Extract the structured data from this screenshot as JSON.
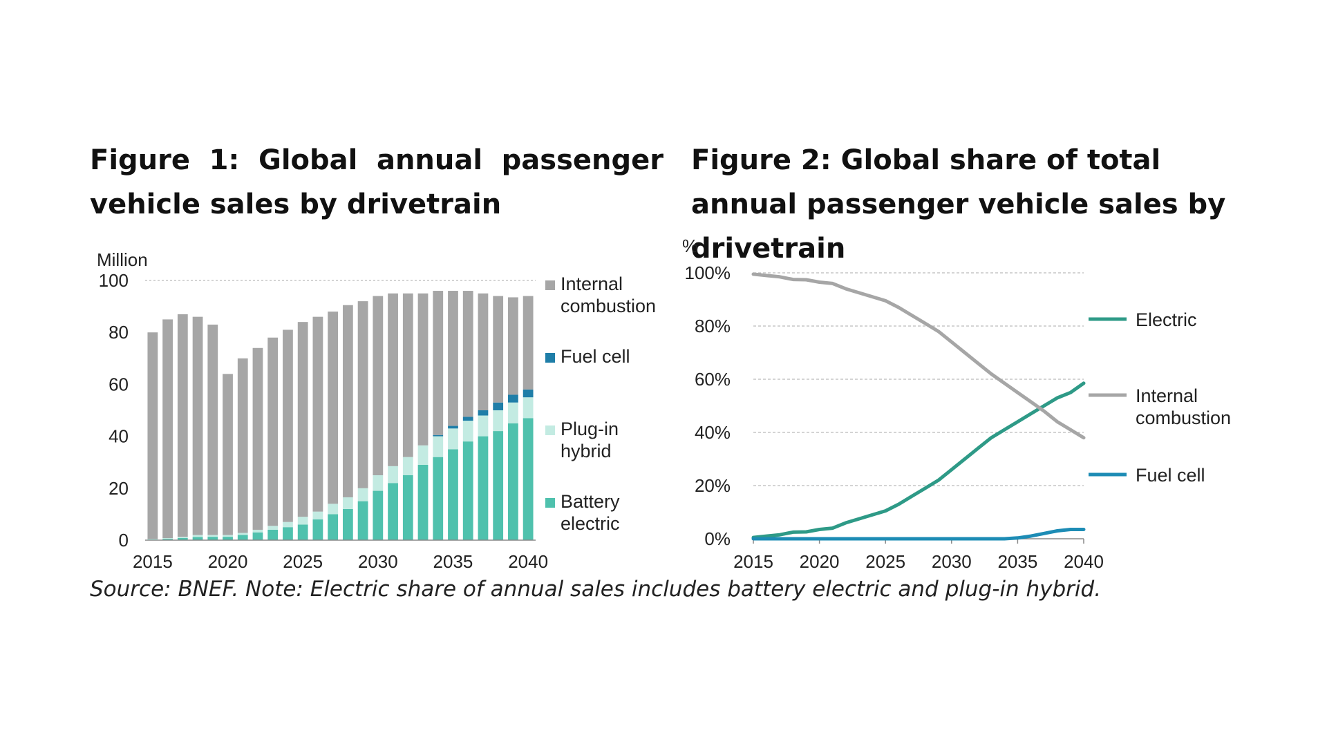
{
  "figure1": {
    "title": "Figure 1: Global annual passenger vehicle sales by drivetrain"
  },
  "figure2": {
    "title": "Figure 2: Global share of total annual passenger vehicle sales by drivetrain"
  },
  "source_note": "Source: BNEF. Note: Electric share of annual sales includes battery electric and plug-in hybrid.",
  "colors": {
    "internal_combustion": "#a6a6a6",
    "fuel_cell": "#1f7ea8",
    "plug_in_hybrid": "#c3ebe2",
    "battery_electric": "#4fc1ad",
    "electric_line": "#2e9a87",
    "ice_line": "#a6a6a6",
    "fuel_cell_line": "#1d8cb5",
    "grid": "#bbbbbb"
  },
  "chart_data": [
    {
      "type": "bar",
      "stacked": true,
      "title": "Figure 1: Global annual passenger vehicle sales by drivetrain",
      "ylabel": "Million",
      "xlabel": "",
      "ylim": [
        0,
        100
      ],
      "yticks": [
        "0",
        "20",
        "40",
        "60",
        "80",
        "100"
      ],
      "xticks": [
        "2015",
        "2020",
        "2025",
        "2030",
        "2035",
        "2040"
      ],
      "grid": true,
      "categories": [
        2015,
        2016,
        2017,
        2018,
        2019,
        2020,
        2021,
        2022,
        2023,
        2024,
        2025,
        2026,
        2027,
        2028,
        2029,
        2030,
        2031,
        2032,
        2033,
        2034,
        2035,
        2036,
        2037,
        2038,
        2039,
        2040
      ],
      "series": [
        {
          "name": "Battery electric",
          "key": "battery_electric",
          "values": [
            0.3,
            0.5,
            0.8,
            1.2,
            1.3,
            1.3,
            2,
            3,
            4,
            5,
            6,
            8,
            10,
            12,
            15,
            19,
            22,
            25,
            29,
            32,
            35,
            38,
            40,
            42,
            45,
            47
          ]
        },
        {
          "name": "Plug-in hybrid",
          "key": "plug_in_hybrid",
          "values": [
            0.2,
            0.3,
            0.5,
            0.8,
            0.7,
            0.7,
            0.8,
            1,
            1.5,
            2,
            3,
            3,
            4,
            4.5,
            5,
            6,
            6.5,
            7,
            7.5,
            8,
            8,
            8,
            8,
            8,
            8,
            8
          ]
        },
        {
          "name": "Fuel cell",
          "key": "fuel_cell",
          "values": [
            0,
            0,
            0,
            0,
            0,
            0,
            0,
            0,
            0,
            0,
            0,
            0,
            0,
            0,
            0,
            0,
            0,
            0,
            0,
            0.5,
            1,
            1.5,
            2,
            3,
            3,
            3
          ]
        },
        {
          "name": "Internal combustion",
          "key": "internal_combustion",
          "values": [
            79.5,
            84.2,
            85.7,
            84,
            81,
            62,
            67.2,
            70,
            72.5,
            74,
            75,
            75,
            74,
            74,
            72,
            69,
            66.5,
            63,
            58.5,
            55.5,
            52,
            48.5,
            45,
            41,
            37.5,
            36
          ]
        }
      ],
      "legend": [
        {
          "key": "internal_combustion",
          "lines": [
            "Internal",
            "combustion"
          ]
        },
        {
          "key": "fuel_cell",
          "lines": [
            "Fuel cell"
          ]
        },
        {
          "key": "plug_in_hybrid",
          "lines": [
            "Plug-in",
            "hybrid"
          ]
        },
        {
          "key": "battery_electric",
          "lines": [
            "Battery",
            "electric"
          ]
        }
      ],
      "legend_position": "right"
    },
    {
      "type": "line",
      "title": "Figure 2: Global share of total annual passenger vehicle sales by drivetrain",
      "ylabel": "%",
      "xlabel": "",
      "ylim": [
        0,
        100
      ],
      "xlim": [
        2015,
        2040
      ],
      "yticks": [
        "0%",
        "20%",
        "40%",
        "60%",
        "80%",
        "100%"
      ],
      "xticks": [
        "2015",
        "2020",
        "2025",
        "2030",
        "2035",
        "2040"
      ],
      "grid": true,
      "x": [
        2015,
        2016,
        2017,
        2018,
        2019,
        2020,
        2021,
        2022,
        2023,
        2024,
        2025,
        2026,
        2027,
        2028,
        2029,
        2030,
        2031,
        2032,
        2033,
        2034,
        2035,
        2036,
        2037,
        2038,
        2039,
        2040
      ],
      "series": [
        {
          "name": "Electric",
          "key": "electric_line",
          "values": [
            0.5,
            1,
            1.5,
            2.5,
            2.6,
            3.5,
            4,
            6,
            7.5,
            9,
            10.5,
            13,
            16,
            19,
            22,
            26,
            30,
            34,
            38,
            41,
            44,
            47,
            50,
            53,
            55,
            58.5
          ]
        },
        {
          "name": "Internal combustion",
          "key": "ice_line",
          "values": [
            99.5,
            99,
            98.5,
            97.5,
            97.4,
            96.5,
            96,
            94,
            92.5,
            91,
            89.5,
            87,
            84,
            81,
            78,
            74,
            70,
            66,
            62,
            58.5,
            55,
            51.5,
            48,
            44,
            41,
            38
          ]
        },
        {
          "name": "Fuel cell",
          "key": "fuel_cell_line",
          "values": [
            0,
            0,
            0,
            0,
            0,
            0,
            0,
            0,
            0,
            0,
            0,
            0,
            0,
            0,
            0,
            0,
            0,
            0,
            0,
            0,
            0.3,
            1,
            2,
            3,
            3.5,
            3.5
          ]
        }
      ],
      "legend": [
        {
          "key": "electric_line",
          "lines": [
            "Electric"
          ]
        },
        {
          "key": "ice_line",
          "lines": [
            "Internal",
            "combustion"
          ]
        },
        {
          "key": "fuel_cell_line",
          "lines": [
            "Fuel cell"
          ]
        }
      ],
      "legend_position": "right"
    }
  ]
}
